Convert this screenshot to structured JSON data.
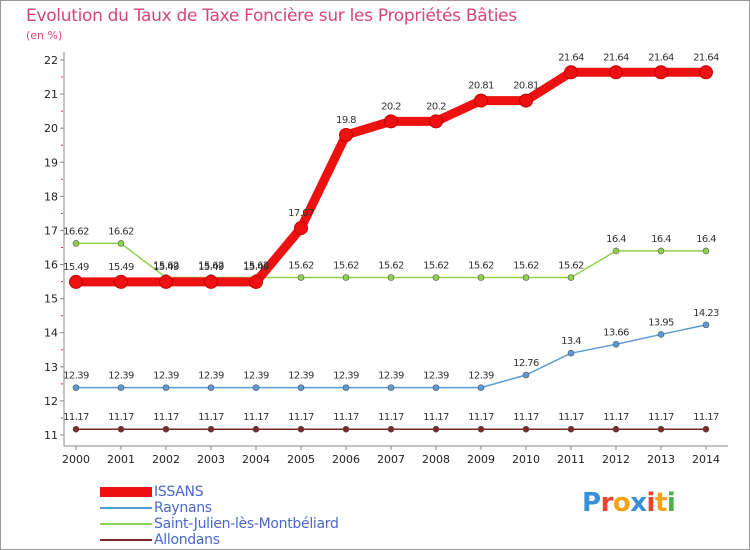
{
  "title": "Evolution du Taux de Taxe Foncière sur les Propriétés Bâties",
  "unit_label": "(en %)",
  "logo": {
    "text": "Proxiti",
    "colors": [
      "#3a8fd9",
      "#e8442e",
      "#f5a21b",
      "#3a8fd9",
      "#e8442e",
      "#f5a21b",
      "#4caf50"
    ]
  },
  "chart_data": {
    "type": "line",
    "title": "Evolution du Taux de Taxe Foncière sur les Propriétés Bâties",
    "ylabel": "(en %)",
    "xlabel": "",
    "x": [
      "2000",
      "2001",
      "2002",
      "2003",
      "2004",
      "2005",
      "2006",
      "2007",
      "2008",
      "2009",
      "2010",
      "2011",
      "2012",
      "2013",
      "2014"
    ],
    "ylim": [
      11,
      22
    ],
    "yticks": [
      "11",
      "12",
      "13",
      "14",
      "15",
      "16",
      "17",
      "18",
      "19",
      "20",
      "21",
      "22"
    ],
    "grid": false,
    "legend_position": "bottom-left",
    "series": [
      {
        "name": "ISSANS",
        "color": "#ee1111",
        "values": [
          15.49,
          15.49,
          15.49,
          15.49,
          15.49,
          17.07,
          19.8,
          20.2,
          20.2,
          20.81,
          20.81,
          21.64,
          21.64,
          21.64,
          21.64
        ],
        "labels": [
          "15.49",
          "15.49",
          "15.49",
          "15.49",
          "15.49",
          "17.07",
          "19.8",
          "20.2",
          "20.2",
          "20.81",
          "20.81",
          "21.64",
          "21.64",
          "21.64",
          "21.64"
        ]
      },
      {
        "name": "Raynans",
        "color": "#5b9bd5",
        "values": [
          12.39,
          12.39,
          12.39,
          12.39,
          12.39,
          12.39,
          12.39,
          12.39,
          12.39,
          12.39,
          12.76,
          13.4,
          13.66,
          13.95,
          14.23
        ],
        "labels": [
          "12.39",
          "12.39",
          "12.39",
          "12.39",
          "12.39",
          "12.39",
          "12.39",
          "12.39",
          "12.39",
          "12.39",
          "12.76",
          "13.4",
          "13.66",
          "13.95",
          "14.23"
        ]
      },
      {
        "name": "Saint-Julien-lès-Montbéliard",
        "color": "#8fd14f",
        "values": [
          16.62,
          16.62,
          15.62,
          15.62,
          15.62,
          15.62,
          15.62,
          15.62,
          15.62,
          15.62,
          15.62,
          15.62,
          16.4,
          16.4,
          16.4
        ],
        "labels": [
          "16.62",
          "16.62",
          "15.62",
          "15.62",
          "15.62",
          "15.62",
          "15.62",
          "15.62",
          "15.62",
          "15.62",
          "15.62",
          "15.62",
          "16.4",
          "16.4",
          "16.4"
        ]
      },
      {
        "name": "Allondans",
        "color": "#7a2a2a",
        "values": [
          11.17,
          11.17,
          11.17,
          11.17,
          11.17,
          11.17,
          11.17,
          11.17,
          11.17,
          11.17,
          11.17,
          11.17,
          11.17,
          11.17,
          11.17
        ],
        "labels": [
          "11.17",
          "11.17",
          "11.17",
          "11.17",
          "11.17",
          "11.17",
          "11.17",
          "11.17",
          "11.17",
          "11.17",
          "11.17",
          "11.17",
          "11.17",
          "11.17",
          "11.17"
        ]
      }
    ]
  }
}
